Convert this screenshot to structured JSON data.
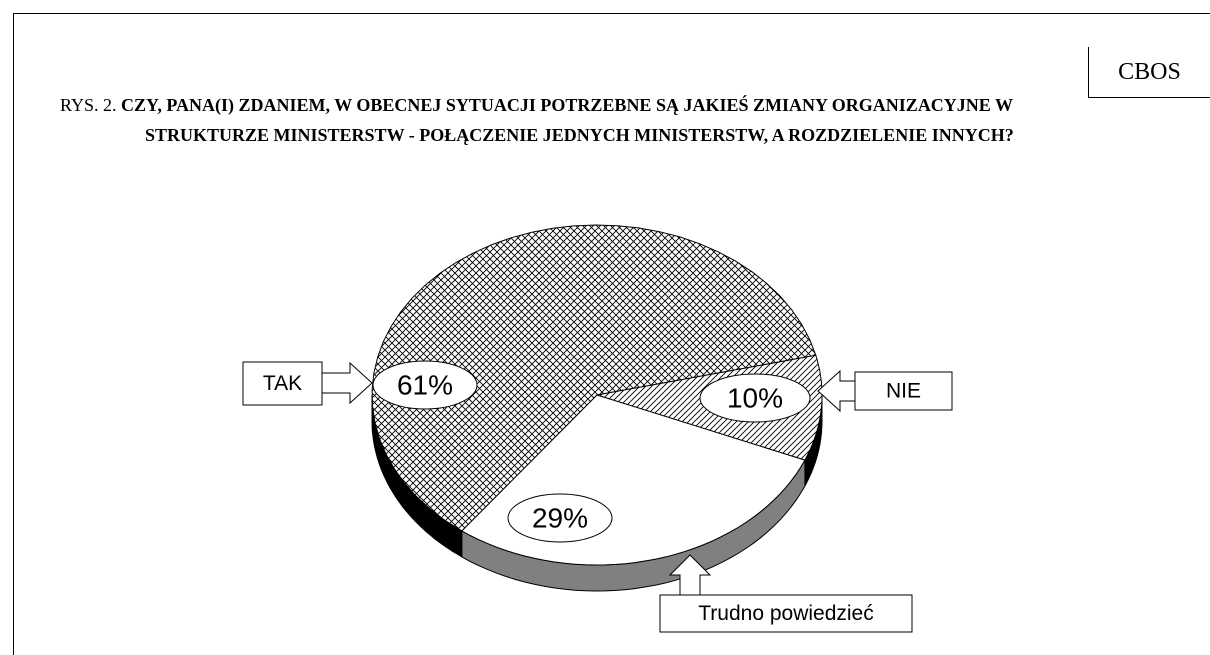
{
  "chart_data": {
    "type": "pie3d",
    "source": "CBOS",
    "figure_label": "RYS. 2.",
    "title": "CZY, PANA(I) ZDANIEM, W OBECNEJ SYTUACJI POTRZEBNE SĄ JAKIEŚ ZMIANY ORGANIZACYJNE W STRUKTURZE MINISTERSTW - POŁĄCZENIE JEDNYCH MINISTERSTW, A ROZDZIELENIE INNYCH?",
    "categories": [
      "TAK",
      "NIE",
      "Trudno powiedzieć"
    ],
    "values": [
      61,
      10,
      29
    ],
    "value_labels": [
      "61%",
      "10%",
      "29%"
    ]
  }
}
